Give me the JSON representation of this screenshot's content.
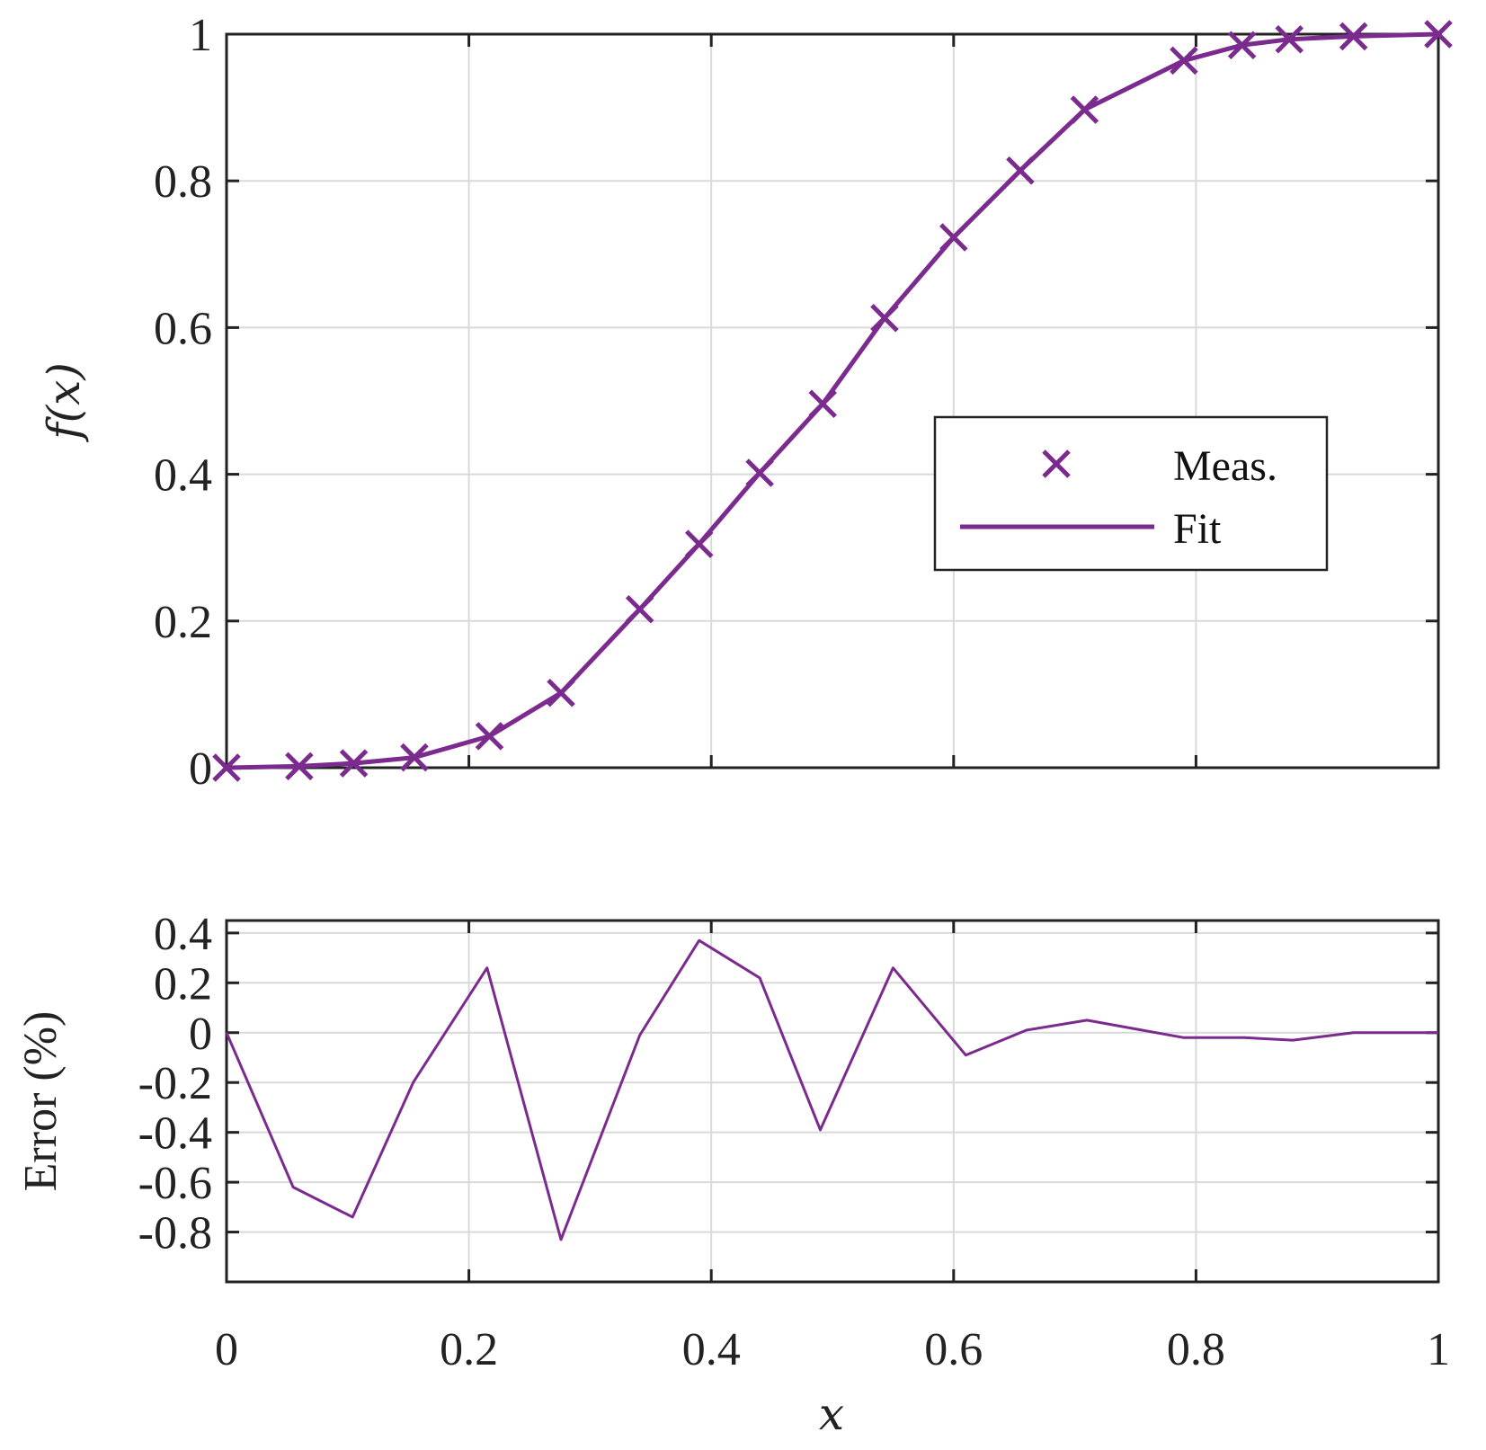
{
  "chart_data": [
    {
      "type": "line",
      "panel": "top",
      "xlabel": "x",
      "ylabel": "f(x)",
      "xlim": [
        0,
        1
      ],
      "ylim": [
        0,
        1
      ],
      "xticks": [
        "0",
        "0.2",
        "0.4",
        "0.6",
        "0.8",
        "1"
      ],
      "xtick_values": [
        0,
        0.2,
        0.4,
        0.6,
        0.8,
        1
      ],
      "yticks": [
        "0",
        "0.2",
        "0.4",
        "0.6",
        "0.8",
        "1"
      ],
      "ytick_values": [
        0,
        0.2,
        0.4,
        0.6,
        0.8,
        1
      ],
      "show_xtick_labels": false,
      "grid": true,
      "legend_position": "center-right",
      "color": "#7B2A8E",
      "series": [
        {
          "name": "Meas.",
          "style": "markers-x",
          "x": [
            0,
            0.06,
            0.105,
            0.155,
            0.217,
            0.276,
            0.341,
            0.39,
            0.44,
            0.492,
            0.543,
            0.6,
            0.655,
            0.708,
            0.79,
            0.838,
            0.877,
            0.93,
            1.0
          ],
          "y": [
            0,
            0.002,
            0.006,
            0.014,
            0.043,
            0.102,
            0.216,
            0.305,
            0.402,
            0.496,
            0.613,
            0.723,
            0.814,
            0.897,
            0.964,
            0.985,
            0.993,
            0.997,
            1.0
          ]
        },
        {
          "name": "Fit",
          "style": "line",
          "x": [
            0,
            0.06,
            0.105,
            0.155,
            0.217,
            0.276,
            0.341,
            0.39,
            0.44,
            0.492,
            0.543,
            0.6,
            0.655,
            0.708,
            0.79,
            0.838,
            0.877,
            0.93,
            1.0
          ],
          "y": [
            0,
            0.002,
            0.006,
            0.014,
            0.043,
            0.102,
            0.216,
            0.305,
            0.402,
            0.496,
            0.613,
            0.723,
            0.814,
            0.897,
            0.964,
            0.985,
            0.993,
            0.997,
            1.0
          ]
        }
      ]
    },
    {
      "type": "line",
      "panel": "bottom",
      "xlabel": "x",
      "ylabel": "Error (%)",
      "xlim": [
        0,
        1
      ],
      "ylim": [
        -1.0,
        0.45
      ],
      "xticks": [
        "0",
        "0.2",
        "0.4",
        "0.6",
        "0.8",
        "1"
      ],
      "xtick_values": [
        0,
        0.2,
        0.4,
        0.6,
        0.8,
        1
      ],
      "yticks": [
        "0.4",
        "0.2",
        "0",
        "-0.2",
        "-0.4",
        "-0.6",
        "-0.8"
      ],
      "ytick_values": [
        0.4,
        0.2,
        0,
        -0.2,
        -0.4,
        -0.6,
        -0.8
      ],
      "grid": true,
      "color": "#7B2A8E",
      "series": [
        {
          "style": "line",
          "x": [
            0,
            0.055,
            0.104,
            0.154,
            0.215,
            0.276,
            0.341,
            0.39,
            0.44,
            0.49,
            0.55,
            0.61,
            0.66,
            0.71,
            0.79,
            0.84,
            0.88,
            0.93,
            1.0
          ],
          "y": [
            0,
            -0.62,
            -0.74,
            -0.2,
            0.26,
            -0.83,
            -0.01,
            0.37,
            0.22,
            -0.39,
            0.26,
            -0.09,
            0.01,
            0.05,
            -0.02,
            -0.02,
            -0.03,
            0,
            0
          ]
        }
      ]
    }
  ]
}
